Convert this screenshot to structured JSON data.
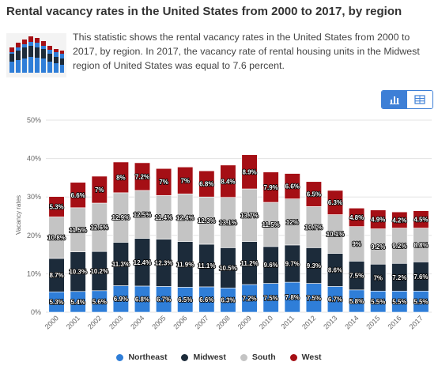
{
  "header": {
    "title": "Rental vacancy rates in the United States from 2000 to 2017, by region",
    "description": "This statistic shows the rental vacancy rates in the United States from 2000 to 2017, by region. In 2017, the vacancy rate of rental housing units in the Midwest region of United States was equal to 7.6 percent."
  },
  "view_toggle": {
    "active": "chart-icon",
    "inactive": "table-icon"
  },
  "chart_data": {
    "type": "bar",
    "stacked": true,
    "title": "",
    "xlabel": "",
    "ylabel": "Vacancy rates",
    "ylim": [
      0,
      50
    ],
    "yticks": [
      "0%",
      "10%",
      "20%",
      "30%",
      "40%",
      "50%"
    ],
    "grid": true,
    "legend_position": "bottom",
    "categories": [
      "2000",
      "2001",
      "2002",
      "2003",
      "2004",
      "2005",
      "2006",
      "2007",
      "2008",
      "2009",
      "2010",
      "2011",
      "2012",
      "2013",
      "2014",
      "2015",
      "2016",
      "2017"
    ],
    "series": [
      {
        "name": "Northeast",
        "color": "#2f7ed8",
        "values": [
          5.3,
          5.4,
          5.6,
          6.9,
          6.8,
          6.7,
          6.5,
          6.6,
          6.3,
          7.2,
          7.5,
          7.8,
          7.5,
          6.7,
          5.8,
          5.5,
          5.5,
          5.5
        ],
        "labels": [
          "5.3%",
          "5.4%",
          "5.6%",
          "6.9%",
          "6.8%",
          "6.7%",
          "6.5%",
          "6.6%",
          "6.3%",
          "7.2%",
          "7.5%",
          "7.8%",
          "7.5%",
          "6.7%",
          "5.8%",
          "5.5%",
          "5.5%",
          "5.5%"
        ]
      },
      {
        "name": "Midwest",
        "color": "#1c2b3a",
        "values": [
          8.7,
          10.3,
          10.2,
          11.3,
          12.4,
          12.3,
          11.9,
          11.1,
          10.5,
          11.2,
          9.6,
          9.7,
          9.3,
          8.6,
          7.5,
          7,
          7.2,
          7.6
        ],
        "labels": [
          "8.7%",
          "10.3%",
          "10.2%",
          "11.3%",
          "12.4%",
          "12.3%",
          "11.9%",
          "11.1%",
          "10.5%",
          "11.2%",
          "9.6%",
          "9.7%",
          "9.3%",
          "8.6%",
          "7.5%",
          "7%",
          "7.2%",
          "7.6%"
        ]
      },
      {
        "name": "South",
        "color": "#c4c4c4",
        "values": [
          10.8,
          11.5,
          12.6,
          12.9,
          12.5,
          11.4,
          12.4,
          12.3,
          13.1,
          13.7,
          11.5,
          12,
          10.7,
          10.1,
          9,
          9.2,
          9.2,
          8.8
        ],
        "labels": [
          "10.8%",
          "11.5%",
          "12.6%",
          "12.9%",
          "12.5%",
          "11.4%",
          "12.4%",
          "12.3%",
          "13.1%",
          "13.7%",
          "11.5%",
          "12%",
          "10.7%",
          "10.1%",
          "9%",
          "9.2%",
          "9.2%",
          "8.8%"
        ]
      },
      {
        "name": "West",
        "color": "#a50f15",
        "values": [
          5.3,
          6.6,
          7,
          8,
          7.2,
          7,
          7,
          6.8,
          8.4,
          8.9,
          7.9,
          6.6,
          6.5,
          6.3,
          4.8,
          4.9,
          4.2,
          4.5
        ],
        "labels": [
          "5.3%",
          "6.6%",
          "7%",
          "8%",
          "7.2%",
          "7%",
          "7%",
          "6.8%",
          "8.4%",
          "8.9%",
          "7.9%",
          "6.6%",
          "6.5%",
          "6.3%",
          "4.8%",
          "4.9%",
          "4.2%",
          "4.5%"
        ]
      }
    ]
  }
}
